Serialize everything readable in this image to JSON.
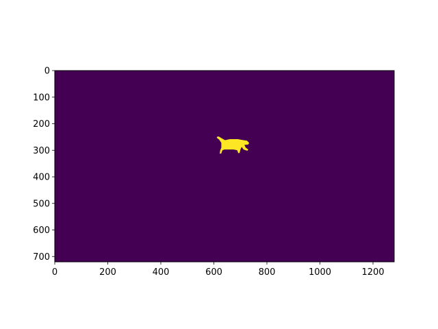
{
  "chart_data": {
    "type": "heatmap",
    "title": "",
    "xlabel": "",
    "ylabel": "",
    "xlim": [
      0,
      1280
    ],
    "ylim": [
      720,
      0
    ],
    "x_ticks": [
      0,
      200,
      400,
      600,
      800,
      1000,
      1200
    ],
    "y_ticks": [
      0,
      100,
      200,
      300,
      400,
      500,
      600,
      700
    ],
    "grid": false,
    "colormap": "viridis",
    "background_value": 0,
    "foreground_value": 1,
    "background_color": "#440154",
    "foreground_color": "#fde725",
    "mask_region": {
      "description": "binary mask blob (animal silhouette)",
      "x_range": [
        610,
        735
      ],
      "y_range": [
        250,
        312
      ],
      "outline": [
        [
          612,
          249
        ],
        [
          618,
          248
        ],
        [
          632,
          256
        ],
        [
          642,
          262
        ],
        [
          660,
          258
        ],
        [
          690,
          258
        ],
        [
          712,
          262
        ],
        [
          725,
          264
        ],
        [
          733,
          272
        ],
        [
          730,
          278
        ],
        [
          715,
          280
        ],
        [
          720,
          290
        ],
        [
          730,
          297
        ],
        [
          726,
          302
        ],
        [
          712,
          297
        ],
        [
          705,
          287
        ],
        [
          700,
          297
        ],
        [
          697,
          310
        ],
        [
          692,
          311
        ],
        [
          688,
          300
        ],
        [
          675,
          297
        ],
        [
          655,
          297
        ],
        [
          640,
          297
        ],
        [
          632,
          300
        ],
        [
          628,
          312
        ],
        [
          622,
          313
        ],
        [
          624,
          300
        ],
        [
          628,
          290
        ],
        [
          628,
          272
        ],
        [
          620,
          260
        ],
        [
          611,
          253
        ]
      ]
    }
  }
}
